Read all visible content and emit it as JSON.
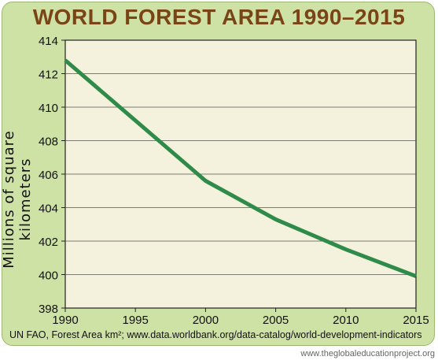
{
  "chart_data": {
    "type": "line",
    "title": "WORLD FOREST AREA 1990–2015",
    "ylabel": "Millions of square kilometers",
    "xlabel": "",
    "xlim": [
      1990,
      2015
    ],
    "ylim": [
      398,
      414
    ],
    "xticks": [
      1990,
      1995,
      2000,
      2005,
      2010,
      2015
    ],
    "yticks": [
      398,
      400,
      402,
      404,
      406,
      408,
      410,
      412,
      414
    ],
    "grid": true,
    "series": [
      {
        "name": "",
        "color": "#2e8b4a",
        "x": [
          1990,
          2000,
          2005,
          2010,
          2015
        ],
        "y": [
          412.8,
          405.6,
          403.3,
          401.5,
          399.9
        ]
      }
    ]
  },
  "source": "UN FAO, Forest Area km²; www.data.worldbank.org/data-catalog/world-development-indicators",
  "credit": "www.theglobaleducationproject.org",
  "colors": {
    "panel": "#cfe2a6",
    "plot_bg": "#f4f1dc",
    "title": "#7a4516",
    "line": "#2e8b4a"
  }
}
